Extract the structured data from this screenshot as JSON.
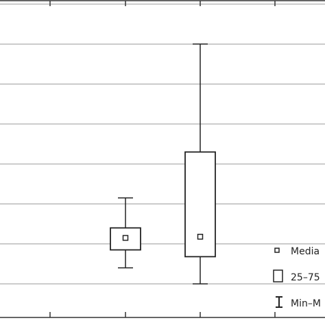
{
  "chart_data": {
    "type": "box",
    "title": "",
    "xlabel": "",
    "ylabel": "",
    "grid": true,
    "legend_placement": "bottom-right",
    "ylim": [
      0,
      7
    ],
    "gridlines": [
      0,
      1,
      2,
      3,
      4,
      5,
      6,
      7
    ],
    "series": [
      {
        "min": 0.4,
        "q1": 0.85,
        "median": 1.15,
        "q3": 1.4,
        "max": 2.15
      },
      {
        "min": 0.0,
        "q1": 0.68,
        "median": 1.18,
        "q3": 3.3,
        "max": 6.0
      }
    ],
    "legend": [
      {
        "symbol": "median",
        "label": "Media"
      },
      {
        "symbol": "box",
        "label": "25–75"
      },
      {
        "symbol": "whisker",
        "label": "Min–M"
      }
    ]
  }
}
